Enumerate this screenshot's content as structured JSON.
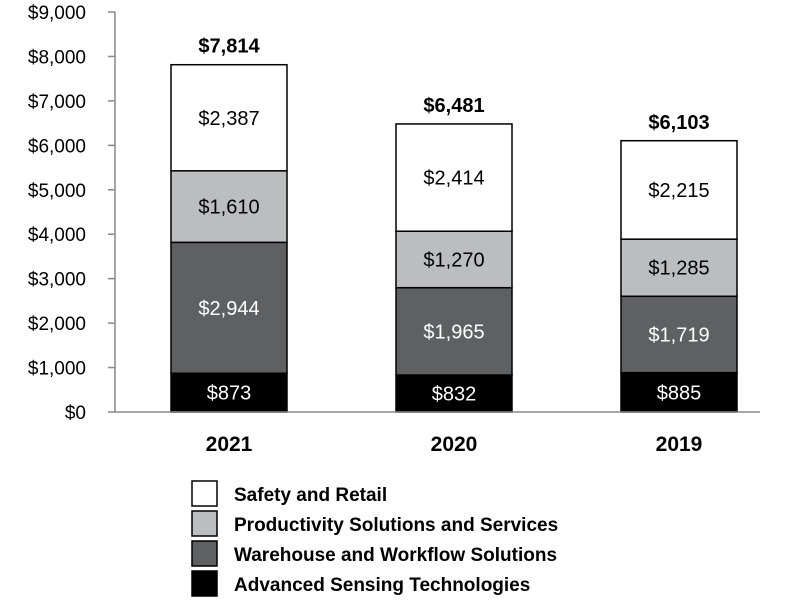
{
  "chart_data": {
    "type": "bar",
    "stacked": true,
    "title": "",
    "xlabel": "",
    "ylabel": "",
    "ylim": [
      0,
      9000
    ],
    "yticks": [
      0,
      1000,
      2000,
      3000,
      4000,
      5000,
      6000,
      7000,
      8000,
      9000
    ],
    "ytick_labels": [
      "$0",
      "$1,000",
      "$2,000",
      "$3,000",
      "$4,000",
      "$5,000",
      "$6,000",
      "$7,000",
      "$8,000",
      "$9,000"
    ],
    "categories": [
      "2021",
      "2020",
      "2019"
    ],
    "totals": [
      7814,
      6481,
      6103
    ],
    "total_labels": [
      "$7,814",
      "$6,481",
      "$6,103"
    ],
    "series": [
      {
        "name": "Advanced Sensing Technologies",
        "color": "#000000",
        "label_color": "#ffffff",
        "values": [
          873,
          832,
          885
        ],
        "labels": [
          "$873",
          "$832",
          "$885"
        ]
      },
      {
        "name": "Warehouse and Workflow Solutions",
        "color": "#5f6062",
        "label_color": "#ffffff",
        "values": [
          2944,
          1965,
          1719
        ],
        "labels": [
          "$2,944",
          "$1,965",
          "$1,719"
        ]
      },
      {
        "name": "Productivity Solutions and Services",
        "color": "#bcbdbf",
        "label_color": "#000000",
        "values": [
          1610,
          1270,
          1285
        ],
        "labels": [
          "$1,610",
          "$1,270",
          "$1,285"
        ]
      },
      {
        "name": "Safety and Retail",
        "color": "#ffffff",
        "label_color": "#000000",
        "values": [
          2387,
          2414,
          2215
        ],
        "labels": [
          "$2,387",
          "$2,414",
          "$2,215"
        ]
      }
    ],
    "legend_order": [
      "Safety and Retail",
      "Productivity Solutions and Services",
      "Warehouse and Workflow Solutions",
      "Advanced Sensing Technologies"
    ],
    "legend_position": "bottom",
    "grid": false
  }
}
